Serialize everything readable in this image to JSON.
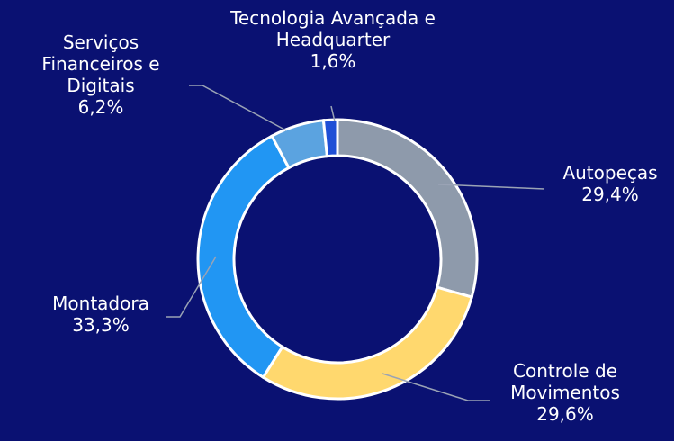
{
  "chart_data": {
    "type": "donut",
    "categories": [
      "Autopeças",
      "Controle de Movimentos",
      "Montadora",
      "Serviços Financeiros e Digitais",
      "Tecnologia Avançada e Headquarter"
    ],
    "values": [
      29.4,
      29.6,
      33.3,
      6.2,
      1.6
    ],
    "value_labels": [
      "29,4%",
      "29,6%",
      "33,3%",
      "6,2%",
      "1,6%"
    ],
    "colors": [
      "#8e9aab",
      "#ffd86e",
      "#2196f3",
      "#5ba3e0",
      "#1f4fd6"
    ]
  }
}
